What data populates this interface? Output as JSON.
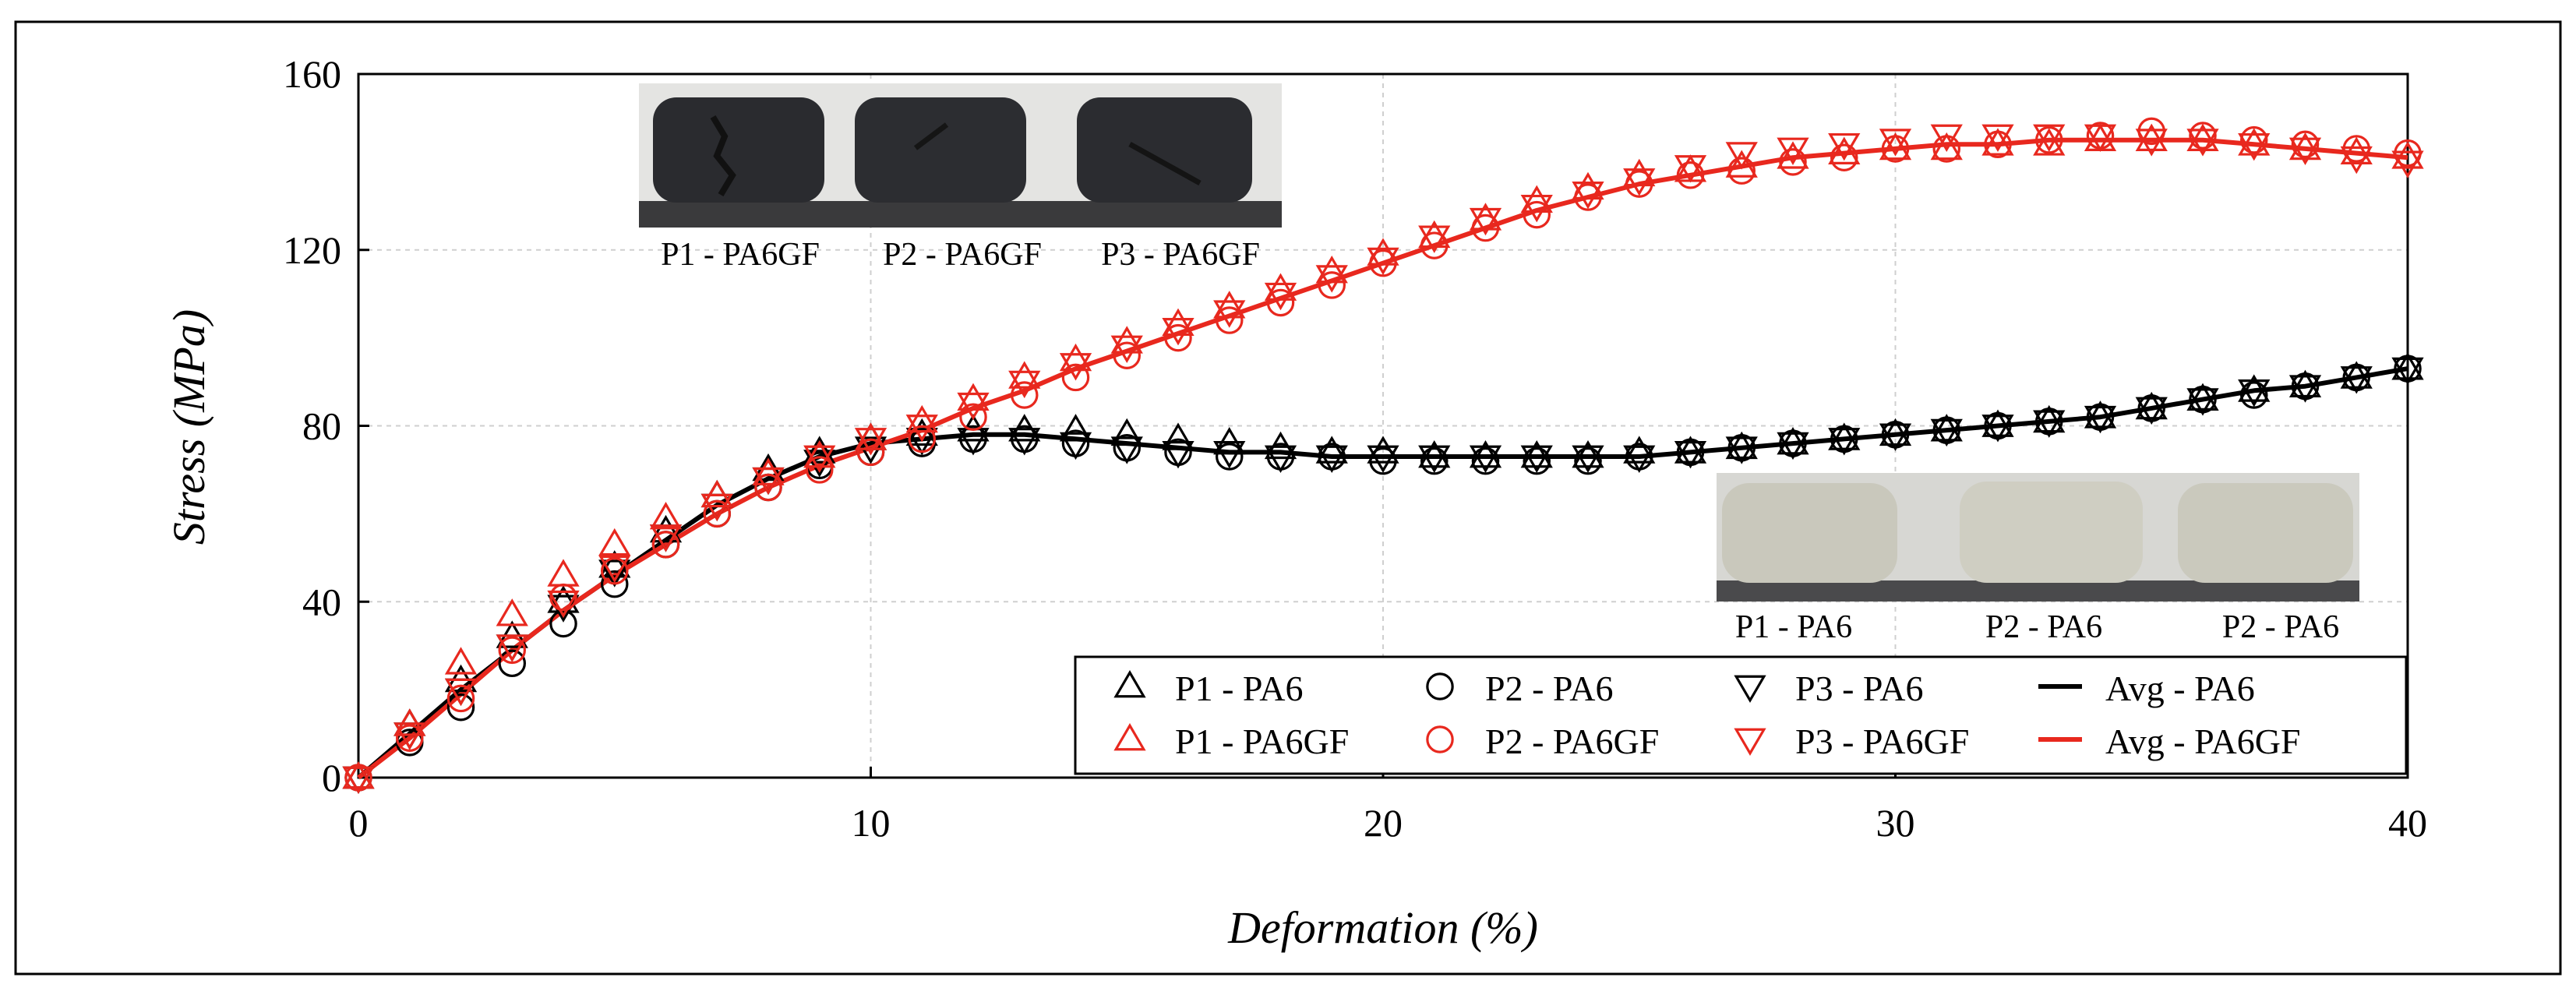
{
  "chart_data": {
    "type": "line",
    "xlabel": "Deformation (%)",
    "ylabel": "Stress (MPa)",
    "xlim": [
      0,
      40
    ],
    "ylim": [
      0,
      160
    ],
    "xticks": [
      "0",
      "10",
      "20",
      "30",
      "40"
    ],
    "yticks": [
      "0",
      "40",
      "80",
      "120",
      "160"
    ],
    "grid": true,
    "x": [
      0,
      1,
      2,
      3,
      4,
      5,
      6,
      7,
      8,
      9,
      10,
      11,
      12,
      13,
      14,
      15,
      16,
      17,
      18,
      19,
      20,
      21,
      22,
      23,
      24,
      25,
      26,
      27,
      28,
      29,
      30,
      31,
      32,
      33,
      34,
      35,
      36,
      37,
      38,
      39,
      40
    ],
    "series": [
      {
        "name": "P1 - PA6",
        "marker": "triangle-up",
        "color": "#000000",
        "values": [
          0,
          12,
          22,
          32,
          40,
          48,
          56,
          64,
          70,
          74,
          77,
          78,
          79,
          79,
          79,
          78,
          77,
          76,
          75,
          74,
          74,
          73,
          73,
          73,
          73,
          74,
          74,
          75,
          76,
          77,
          78,
          79,
          80,
          81,
          82,
          84,
          86,
          88,
          89,
          91,
          93
        ]
      },
      {
        "name": "P2 - PA6",
        "marker": "circle",
        "color": "#000000",
        "values": [
          0,
          8,
          16,
          26,
          35,
          44,
          53,
          60,
          66,
          71,
          74,
          76,
          77,
          77,
          76,
          75,
          74,
          73,
          73,
          73,
          72,
          72,
          72,
          72,
          72,
          73,
          74,
          75,
          76,
          77,
          78,
          79,
          80,
          81,
          82,
          84,
          86,
          87,
          89,
          91,
          93
        ]
      },
      {
        "name": "P3 - PA6",
        "marker": "triangle-down",
        "color": "#000000",
        "values": [
          0,
          10,
          20,
          30,
          39,
          47,
          55,
          62,
          68,
          72,
          75,
          77,
          77,
          77,
          76,
          75,
          74,
          74,
          73,
          73,
          73,
          73,
          73,
          73,
          73,
          73,
          74,
          75,
          76,
          77,
          78,
          79,
          80,
          81,
          82,
          84,
          86,
          88,
          89,
          91,
          93
        ]
      },
      {
        "name": "Avg - PA6",
        "marker": "line",
        "color": "#000000",
        "values": [
          0,
          10,
          20,
          29,
          38,
          46,
          54,
          62,
          68,
          73,
          76,
          77,
          78,
          78,
          77,
          76,
          75,
          74,
          74,
          73,
          73,
          73,
          73,
          73,
          73,
          73,
          74,
          75,
          76,
          77,
          78,
          79,
          80,
          81,
          82,
          84,
          86,
          88,
          89,
          91,
          93
        ]
      },
      {
        "name": "P1 - PA6GF",
        "marker": "triangle-up",
        "color": "#e8281e",
        "values": [
          0,
          12,
          26,
          37,
          46,
          53,
          59,
          64,
          69,
          73,
          77,
          81,
          86,
          91,
          95,
          99,
          103,
          107,
          111,
          115,
          119,
          123,
          127,
          131,
          134,
          137,
          138,
          139,
          141,
          142,
          143,
          143,
          144,
          144,
          145,
          145,
          145,
          144,
          143,
          142,
          141
        ]
      },
      {
        "name": "P2 - PA6GF",
        "marker": "circle",
        "color": "#e8281e",
        "values": [
          0,
          9,
          18,
          29,
          41,
          47,
          53,
          60,
          66,
          70,
          74,
          77,
          82,
          87,
          91,
          96,
          100,
          104,
          108,
          112,
          117,
          121,
          125,
          128,
          132,
          135,
          137,
          138,
          140,
          141,
          143,
          143,
          144,
          145,
          146,
          147,
          146,
          145,
          144,
          143,
          142
        ]
      },
      {
        "name": "P3 - PA6GF",
        "marker": "triangle-down",
        "color": "#e8281e",
        "values": [
          0,
          10,
          20,
          30,
          40,
          48,
          55,
          62,
          68,
          73,
          77,
          80,
          85,
          90,
          94,
          98,
          102,
          106,
          110,
          114,
          118,
          123,
          127,
          130,
          133,
          136,
          139,
          142,
          143,
          144,
          145,
          146,
          146,
          146,
          146,
          145,
          145,
          144,
          143,
          141,
          140
        ]
      },
      {
        "name": "Avg - PA6GF",
        "marker": "line",
        "color": "#e8281e",
        "values": [
          0,
          9,
          19,
          29,
          38,
          46,
          53,
          60,
          66,
          71,
          75,
          79,
          84,
          88,
          93,
          97,
          101,
          105,
          109,
          113,
          117,
          121,
          125,
          129,
          132,
          135,
          137,
          139,
          141,
          142,
          143,
          144,
          144,
          145,
          145,
          145,
          145,
          144,
          143,
          142,
          141
        ]
      }
    ]
  },
  "photos": {
    "pa6gf": {
      "labels": [
        "P1 - PA6GF",
        "P2 - PA6GF",
        "P3 - PA6GF"
      ]
    },
    "pa6": {
      "labels": [
        "P1 - PA6",
        "P2 - PA6",
        "P2 - PA6"
      ]
    }
  },
  "colors": {
    "black": "#000000",
    "red": "#e8281e"
  }
}
